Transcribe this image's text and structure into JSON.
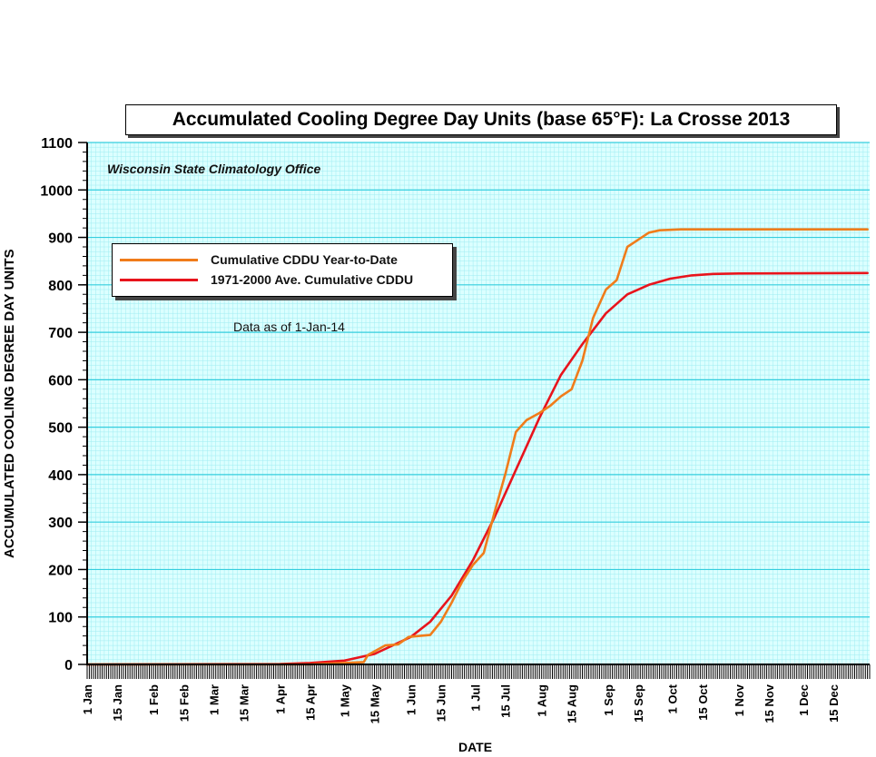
{
  "chart_data": {
    "type": "line",
    "title": "Accumulated Cooling Degree Day Units (base 65°F): La Crosse 2013",
    "subtitle": "Wisconsin State Climatology Office",
    "annotation": "Data as of 1-Jan-14",
    "xlabel": "DATE",
    "ylabel": "ACCUMULATED COOLING DEGREE DAY UNITS",
    "ylim": [
      0,
      1100
    ],
    "yticks": [
      0,
      100,
      200,
      300,
      400,
      500,
      600,
      700,
      800,
      900,
      1000,
      1100
    ],
    "xlim": [
      "1 Jan",
      "31 Dec"
    ],
    "xtick_labels": [
      "1 Jan",
      "15 Jan",
      "1 Feb",
      "15 Feb",
      "1 Mar",
      "15 Mar",
      "1 Apr",
      "15 Apr",
      "1 May",
      "15 May",
      "1 Jun",
      "15 Jun",
      "1 Jul",
      "15 Jul",
      "1 Aug",
      "15 Aug",
      "1 Sep",
      "15 Sep",
      "1 Oct",
      "15 Oct",
      "1 Nov",
      "15 Nov",
      "1 Dec",
      "15 Dec"
    ],
    "grid": true,
    "legend_position": "top-left",
    "colors": {
      "background": "#dcffff",
      "grid_major": "#34cede",
      "grid_minor": "#9eecf2"
    },
    "series": [
      {
        "name": "Cumulative CDDU Year-to-Date",
        "color": "#f07c1a",
        "x": [
          "1 Jan",
          "15 Apr",
          "1 May",
          "10 May",
          "12 May",
          "20 May",
          "26 May",
          "31 May",
          "5 Jun",
          "10 Jun",
          "15 Jun",
          "20 Jun",
          "25 Jun",
          "30 Jun",
          "5 Jul",
          "10 Jul",
          "15 Jul",
          "20 Jul",
          "25 Jul",
          "31 Jul",
          "5 Aug",
          "10 Aug",
          "15 Aug",
          "20 Aug",
          "25 Aug",
          "31 Aug",
          "5 Sep",
          "10 Sep",
          "15 Sep",
          "20 Sep",
          "25 Sep",
          "30 Sep",
          "5 Oct",
          "15 Oct",
          "31 Dec"
        ],
        "y": [
          0,
          0,
          3,
          5,
          20,
          40,
          42,
          58,
          60,
          62,
          90,
          130,
          175,
          210,
          235,
          320,
          400,
          490,
          515,
          530,
          545,
          565,
          580,
          640,
          730,
          790,
          810,
          880,
          895,
          910,
          915,
          916,
          917,
          917,
          917
        ]
      },
      {
        "name": "1971-2000 Ave. Cumulative CDDU",
        "color": "#e8141c",
        "x": [
          "1 Jan",
          "1 Apr",
          "15 Apr",
          "1 May",
          "15 May",
          "1 Jun",
          "10 Jun",
          "20 Jun",
          "30 Jun",
          "10 Jul",
          "20 Jul",
          "31 Jul",
          "10 Aug",
          "20 Aug",
          "31 Aug",
          "10 Sep",
          "20 Sep",
          "30 Sep",
          "10 Oct",
          "20 Oct",
          "1 Nov",
          "31 Dec"
        ],
        "y": [
          0,
          1,
          3,
          8,
          22,
          58,
          90,
          145,
          220,
          310,
          410,
          520,
          610,
          675,
          740,
          780,
          800,
          813,
          820,
          823,
          824,
          825
        ]
      }
    ]
  }
}
